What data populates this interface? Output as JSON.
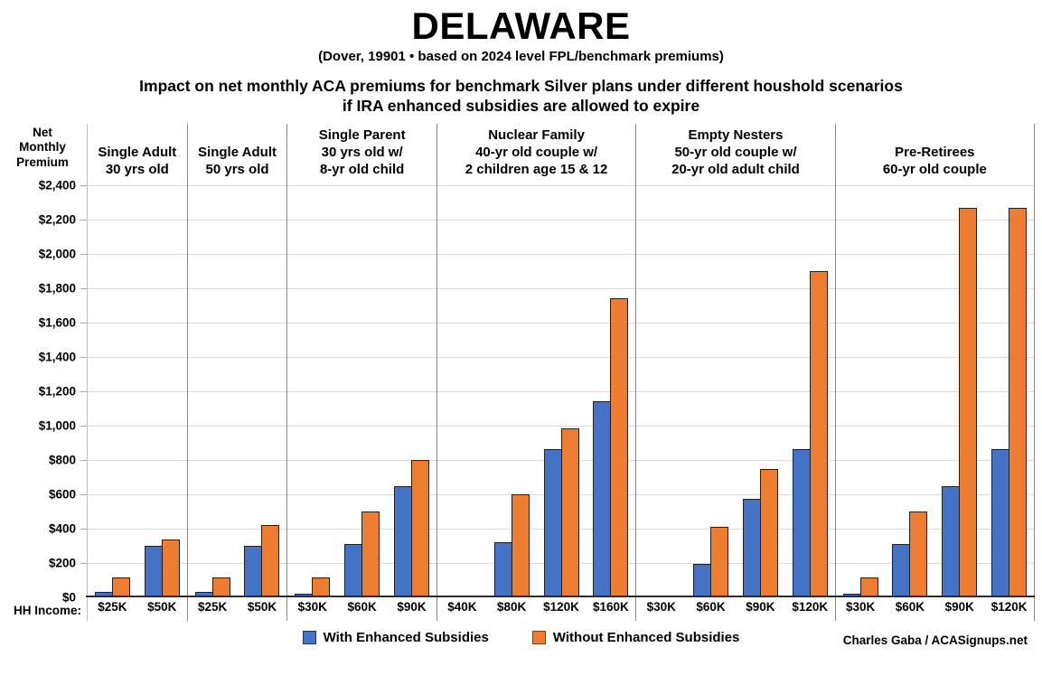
{
  "chart_data": {
    "type": "bar",
    "title": "DELAWARE",
    "subtitle": "(Dover, 19901 • based on 2024 level FPL/benchmark premiums)",
    "description": "Impact on net monthly ACA premiums for benchmark Silver plans under different houshold scenarios\nif IRA enhanced subsidies are allowed to expire",
    "y_axis": {
      "label": "Net\nMonthly\nPremium",
      "min": 0,
      "max": 2400,
      "step": 200,
      "ticks": [
        "$2,400",
        "$2,200",
        "$2,000",
        "$1,800",
        "$1,600",
        "$1,400",
        "$1,200",
        "$1,000",
        "$800",
        "$600",
        "$400",
        "$200",
        "$0"
      ]
    },
    "x_row_label": "HH Income:",
    "grid": true,
    "series_names": [
      "With Enhanced Subsidies",
      "Without Enhanced Subsidies"
    ],
    "groups": [
      {
        "header": "Single Adult\n30 yrs old",
        "incomes": [
          "$25K",
          "$50K"
        ],
        "with_subsidies": [
          20,
          290
        ],
        "without_subsidies": [
          105,
          325
        ]
      },
      {
        "header": "Single Adult\n50 yrs old",
        "incomes": [
          "$25K",
          "$50K"
        ],
        "with_subsidies": [
          20,
          290
        ],
        "without_subsidies": [
          105,
          410
        ]
      },
      {
        "header": "Single Parent\n30 yrs old w/\n8-yr old child",
        "incomes": [
          "$30K",
          "$60K",
          "$90K"
        ],
        "with_subsidies": [
          10,
          300,
          635
        ],
        "without_subsidies": [
          105,
          490,
          790
        ]
      },
      {
        "header": "Nuclear Family\n40-yr old couple w/\n2 children age 15 & 12",
        "incomes": [
          "$40K",
          "$80K",
          "$120K",
          "$160K"
        ],
        "with_subsidies": [
          0,
          310,
          850,
          1130
        ],
        "without_subsidies": [
          0,
          590,
          975,
          1730
        ]
      },
      {
        "header": "Empty Nesters\n50-yr old couple w/\n20-yr old adult child",
        "incomes": [
          "$30K",
          "$60K",
          "$90K",
          "$120K"
        ],
        "with_subsidies": [
          0,
          185,
          565,
          850
        ],
        "without_subsidies": [
          0,
          400,
          735,
          1890
        ]
      },
      {
        "header": "Pre-Retirees\n60-yr old couple",
        "incomes": [
          "$30K",
          "$60K",
          "$90K",
          "$120K"
        ],
        "with_subsidies": [
          10,
          300,
          635,
          850
        ],
        "without_subsidies": [
          105,
          490,
          2260,
          2260
        ]
      }
    ],
    "legend": [
      {
        "label": "With Enhanced Subsidies",
        "color": "#4472C4"
      },
      {
        "label": "Without Enhanced Subsidies",
        "color": "#ED7D31"
      }
    ],
    "legend_position": "bottom",
    "credit": "Charles Gaba / ACASignups.net",
    "colors": {
      "with_subsidies": "#4472C4",
      "without_subsidies": "#ED7D31",
      "bar_outline": "#1f1f1f",
      "gridline": "#d9d9d9",
      "separator": "#8a8a8a"
    }
  }
}
